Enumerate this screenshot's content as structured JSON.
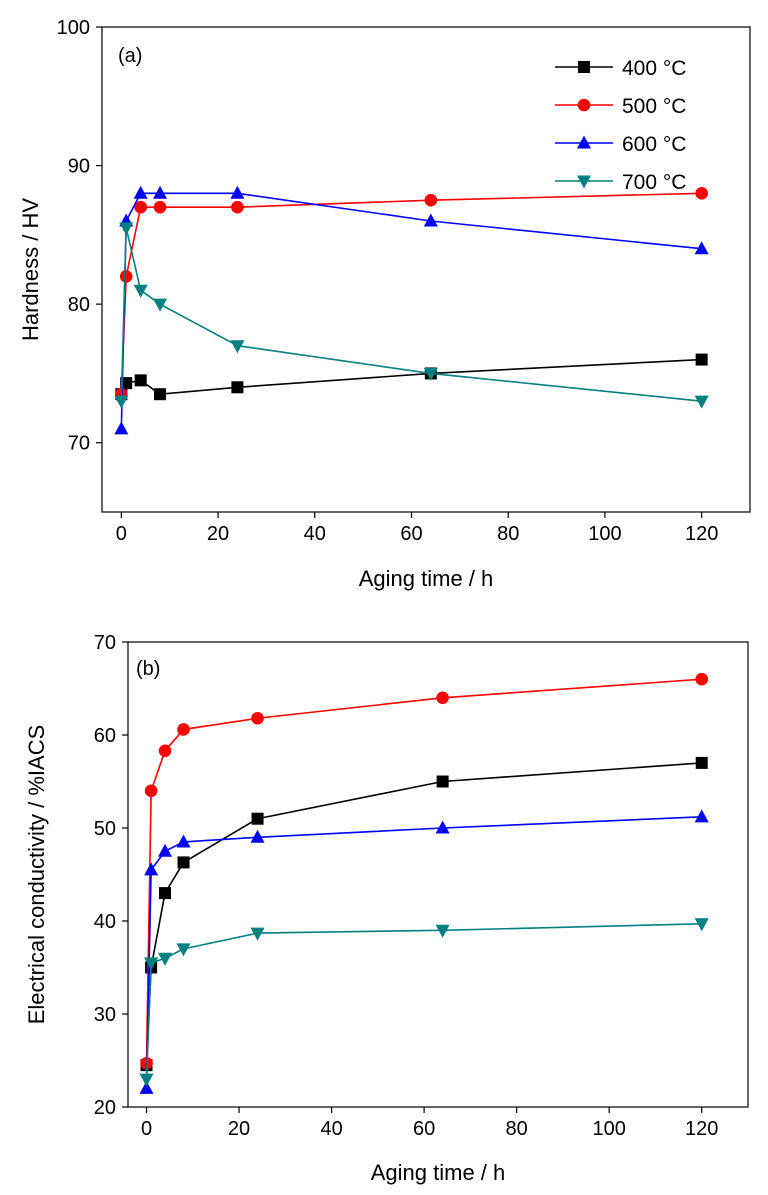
{
  "chart_data": [
    {
      "type": "line",
      "panel_label": "(a)",
      "xlabel": "Aging time / h",
      "ylabel": "Hardness / HV",
      "xlim": [
        -4,
        130
      ],
      "ylim": [
        65,
        100
      ],
      "xticks": [
        0,
        20,
        40,
        60,
        80,
        100,
        120
      ],
      "yticks": [
        70,
        80,
        90,
        100
      ],
      "legend_position": "top-right",
      "series": [
        {
          "name": "400 °C",
          "color": "#000000",
          "marker": "square",
          "x": [
            0,
            1,
            4,
            8,
            24,
            64,
            120
          ],
          "y": [
            73.5,
            74.3,
            74.5,
            73.5,
            74.0,
            75.0,
            76.0
          ]
        },
        {
          "name": "500 °C",
          "color": "#ff0000",
          "marker": "circle",
          "x": [
            0,
            1,
            4,
            8,
            24,
            64,
            120
          ],
          "y": [
            73.5,
            82.0,
            87.0,
            87.0,
            87.0,
            87.5,
            88.0
          ]
        },
        {
          "name": "600 °C",
          "color": "#0000ff",
          "marker": "triangle-up",
          "x": [
            0,
            1,
            4,
            8,
            24,
            64,
            120
          ],
          "y": [
            71.0,
            86.0,
            88.0,
            88.0,
            88.0,
            86.0,
            84.0
          ]
        },
        {
          "name": "700 °C",
          "color": "#008080",
          "marker": "triangle-down",
          "x": [
            0,
            1,
            4,
            8,
            24,
            64,
            120
          ],
          "y": [
            73.0,
            85.5,
            81.0,
            80.0,
            77.0,
            75.0,
            73.0
          ]
        }
      ]
    },
    {
      "type": "line",
      "panel_label": "(b)",
      "xlabel": "Aging time / h",
      "ylabel": "Electrical conductivity / %IACS",
      "xlim": [
        -4,
        130
      ],
      "ylim": [
        20,
        70
      ],
      "xticks": [
        0,
        20,
        40,
        60,
        80,
        100,
        120
      ],
      "yticks": [
        20,
        30,
        40,
        50,
        60,
        70
      ],
      "series": [
        {
          "name": "400 °C",
          "color": "#000000",
          "marker": "square",
          "x": [
            0,
            1,
            4,
            8,
            24,
            64,
            120
          ],
          "y": [
            24.5,
            35.0,
            43.0,
            46.3,
            51.0,
            55.0,
            57.0
          ]
        },
        {
          "name": "500 °C",
          "color": "#ff0000",
          "marker": "circle",
          "x": [
            0,
            1,
            4,
            8,
            24,
            64,
            120
          ],
          "y": [
            24.7,
            54.0,
            58.3,
            60.6,
            61.8,
            64.0,
            66.0
          ]
        },
        {
          "name": "600 °C",
          "color": "#0000ff",
          "marker": "triangle-up",
          "x": [
            0,
            1,
            4,
            8,
            24,
            64,
            120
          ],
          "y": [
            22.0,
            45.5,
            47.5,
            48.5,
            49.0,
            50.0,
            51.2
          ]
        },
        {
          "name": "700 °C",
          "color": "#008080",
          "marker": "triangle-down",
          "x": [
            0,
            1,
            4,
            8,
            24,
            64,
            120
          ],
          "y": [
            23.0,
            35.5,
            36.0,
            37.0,
            38.7,
            39.0,
            39.7
          ]
        }
      ]
    }
  ]
}
